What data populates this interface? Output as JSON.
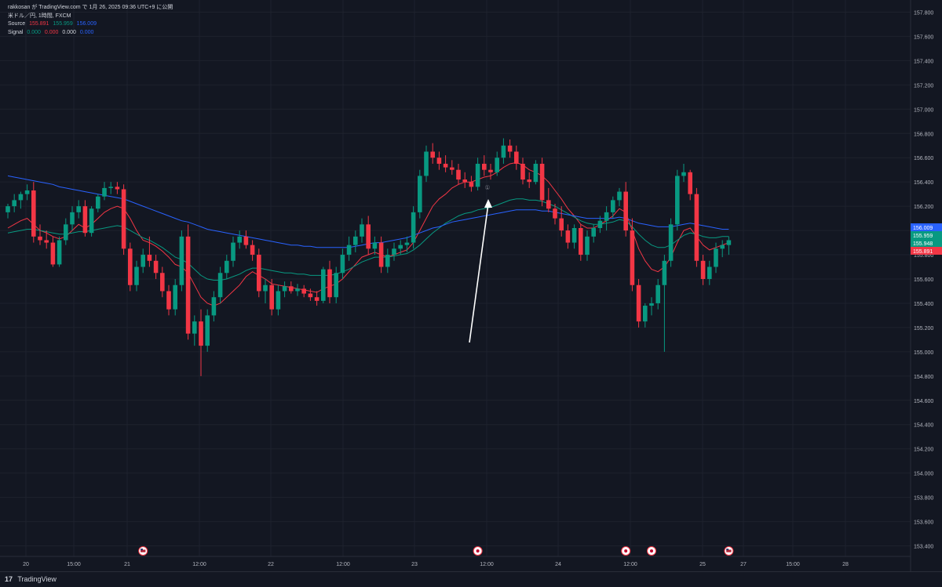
{
  "header": {
    "publish_line": "rakkosan が TradingView.com で 1月 26, 2025 09:36 UTC+9 に公開",
    "symbol_line": "米ドル／円, 1時間, FXCM",
    "source_label": "Source",
    "source_values": [
      "155.891",
      "155.959",
      "156.009"
    ],
    "signal_label": "Signal",
    "signal_values": [
      "0.000",
      "0.000",
      "0.000",
      "0.000"
    ]
  },
  "footer": {
    "brand": "TradingView",
    "logo": "17"
  },
  "colors": {
    "background": "#131722",
    "up": "#089981",
    "down": "#f23645",
    "grid": "#1e222d",
    "ma_red": "#f23645",
    "ma_green": "#089981",
    "ma_blue": "#2962ff"
  },
  "chart_data": {
    "type": "candlestick",
    "y_range": [
      153.3,
      157.9
    ],
    "y_ticks": [
      "157.800",
      "157.600",
      "157.400",
      "157.200",
      "157.000",
      "156.800",
      "156.600",
      "156.400",
      "156.200",
      "156.000",
      "155.800",
      "155.600",
      "155.400",
      "155.200",
      "155.000",
      "154.800",
      "154.600",
      "154.400",
      "154.200",
      "154.000",
      "153.800",
      "153.600",
      "153.400"
    ],
    "x_labels": [
      "20",
      "15:00",
      "21",
      "12:00",
      "22",
      "12:00",
      "23",
      "12:00",
      "24",
      "12:00",
      "25",
      "27",
      "15:00",
      "28"
    ],
    "price_badges": [
      {
        "value": "156.009",
        "color": "#2962ff"
      },
      {
        "value": "155.959",
        "color": "#089981"
      },
      {
        "value": "155.948",
        "color": "#089981"
      },
      {
        "value": "155.891",
        "color": "#f23645"
      }
    ],
    "candles": [
      [
        156.15,
        156.22,
        156.1,
        156.2
      ],
      [
        156.2,
        156.3,
        156.15,
        156.25
      ],
      [
        156.25,
        156.32,
        156.18,
        156.3
      ],
      [
        156.3,
        156.38,
        156.25,
        156.33
      ],
      [
        156.33,
        156.4,
        155.9,
        155.95
      ],
      [
        155.95,
        156.05,
        155.88,
        155.92
      ],
      [
        155.92,
        156.0,
        155.85,
        155.9
      ],
      [
        155.9,
        155.95,
        155.7,
        155.72
      ],
      [
        155.72,
        155.95,
        155.7,
        155.92
      ],
      [
        155.92,
        156.1,
        155.88,
        156.05
      ],
      [
        156.05,
        156.2,
        156.0,
        156.15
      ],
      [
        156.15,
        156.25,
        156.1,
        156.2
      ],
      [
        156.2,
        156.25,
        155.95,
        155.98
      ],
      [
        155.98,
        156.2,
        155.95,
        156.18
      ],
      [
        156.18,
        156.3,
        156.15,
        156.28
      ],
      [
        156.28,
        156.4,
        156.25,
        156.35
      ],
      [
        156.35,
        156.4,
        156.3,
        156.36
      ],
      [
        156.36,
        156.4,
        156.3,
        156.34
      ],
      [
        156.34,
        156.38,
        155.8,
        155.85
      ],
      [
        155.85,
        155.9,
        155.5,
        155.55
      ],
      [
        155.55,
        155.75,
        155.5,
        155.7
      ],
      [
        155.7,
        155.85,
        155.65,
        155.8
      ],
      [
        155.8,
        155.95,
        155.7,
        155.75
      ],
      [
        155.75,
        155.8,
        155.6,
        155.65
      ],
      [
        155.65,
        155.7,
        155.45,
        155.5
      ],
      [
        155.5,
        155.55,
        155.3,
        155.35
      ],
      [
        155.35,
        155.6,
        155.3,
        155.55
      ],
      [
        155.55,
        156.0,
        155.5,
        155.95
      ],
      [
        155.95,
        156.05,
        155.1,
        155.15
      ],
      [
        155.15,
        155.3,
        155.05,
        155.25
      ],
      [
        155.25,
        155.35,
        154.8,
        155.05
      ],
      [
        155.05,
        155.35,
        155.0,
        155.3
      ],
      [
        155.3,
        155.5,
        155.25,
        155.45
      ],
      [
        155.45,
        155.7,
        155.4,
        155.65
      ],
      [
        155.65,
        155.8,
        155.6,
        155.75
      ],
      [
        155.75,
        155.95,
        155.7,
        155.9
      ],
      [
        155.9,
        156.0,
        155.85,
        155.95
      ],
      [
        155.95,
        156.0,
        155.85,
        155.88
      ],
      [
        155.88,
        155.92,
        155.75,
        155.8
      ],
      [
        155.8,
        155.85,
        155.45,
        155.5
      ],
      [
        155.5,
        155.6,
        155.4,
        155.55
      ],
      [
        155.55,
        155.6,
        155.3,
        155.35
      ],
      [
        155.35,
        155.55,
        155.3,
        155.5
      ],
      [
        155.5,
        155.58,
        155.45,
        155.54
      ],
      [
        155.54,
        155.58,
        155.48,
        155.5
      ],
      [
        155.5,
        155.56,
        155.46,
        155.52
      ],
      [
        155.52,
        155.55,
        155.45,
        155.48
      ],
      [
        155.48,
        155.52,
        155.42,
        155.45
      ],
      [
        155.45,
        155.5,
        155.38,
        155.42
      ],
      [
        155.42,
        155.7,
        155.4,
        155.68
      ],
      [
        155.68,
        155.75,
        155.4,
        155.45
      ],
      [
        155.45,
        155.7,
        155.4,
        155.65
      ],
      [
        155.65,
        155.85,
        155.6,
        155.8
      ],
      [
        155.8,
        155.95,
        155.75,
        155.88
      ],
      [
        155.88,
        156.0,
        155.82,
        155.95
      ],
      [
        155.95,
        156.1,
        155.9,
        156.05
      ],
      [
        156.05,
        156.12,
        155.8,
        155.85
      ],
      [
        155.85,
        155.95,
        155.8,
        155.9
      ],
      [
        155.9,
        155.95,
        155.65,
        155.7
      ],
      [
        155.7,
        155.85,
        155.65,
        155.8
      ],
      [
        155.8,
        155.9,
        155.75,
        155.85
      ],
      [
        155.85,
        155.92,
        155.8,
        155.88
      ],
      [
        155.88,
        155.95,
        155.82,
        155.9
      ],
      [
        155.9,
        156.2,
        155.85,
        156.15
      ],
      [
        156.15,
        156.5,
        156.1,
        156.45
      ],
      [
        156.45,
        156.7,
        156.4,
        156.65
      ],
      [
        156.65,
        156.72,
        156.55,
        156.6
      ],
      [
        156.6,
        156.65,
        156.5,
        156.55
      ],
      [
        156.55,
        156.62,
        156.48,
        156.52
      ],
      [
        156.52,
        156.58,
        156.46,
        156.5
      ],
      [
        156.5,
        156.55,
        156.38,
        156.42
      ],
      [
        156.42,
        156.48,
        156.35,
        156.4
      ],
      [
        156.4,
        156.45,
        156.32,
        156.36
      ],
      [
        156.36,
        156.6,
        156.33,
        156.55
      ],
      [
        156.55,
        156.62,
        156.45,
        156.5
      ],
      [
        156.5,
        156.55,
        156.42,
        156.48
      ],
      [
        156.48,
        156.65,
        156.45,
        156.6
      ],
      [
        156.6,
        156.76,
        156.55,
        156.7
      ],
      [
        156.7,
        156.75,
        156.6,
        156.65
      ],
      [
        156.65,
        156.7,
        156.5,
        156.55
      ],
      [
        156.55,
        156.6,
        156.38,
        156.42
      ],
      [
        156.42,
        156.48,
        156.35,
        156.4
      ],
      [
        156.4,
        156.58,
        156.38,
        156.55
      ],
      [
        156.55,
        156.6,
        156.2,
        156.25
      ],
      [
        156.25,
        156.35,
        156.15,
        156.18
      ],
      [
        156.18,
        156.22,
        156.05,
        156.1
      ],
      [
        156.1,
        156.2,
        155.95,
        156.0
      ],
      [
        156.0,
        156.05,
        155.85,
        155.9
      ],
      [
        155.9,
        156.05,
        155.85,
        156.02
      ],
      [
        156.02,
        156.05,
        155.75,
        155.8
      ],
      [
        155.8,
        156.0,
        155.75,
        155.95
      ],
      [
        155.95,
        156.05,
        155.9,
        156.02
      ],
      [
        156.02,
        156.12,
        155.98,
        156.08
      ],
      [
        156.08,
        156.2,
        156.0,
        156.15
      ],
      [
        156.15,
        156.28,
        156.1,
        156.25
      ],
      [
        156.25,
        156.35,
        156.2,
        156.32
      ],
      [
        156.32,
        156.4,
        155.95,
        156.0
      ],
      [
        156.0,
        156.1,
        155.5,
        155.55
      ],
      [
        155.55,
        155.6,
        155.2,
        155.25
      ],
      [
        155.25,
        155.4,
        155.2,
        155.38
      ],
      [
        155.38,
        155.45,
        155.3,
        155.4
      ],
      [
        155.4,
        155.6,
        155.35,
        155.55
      ],
      [
        155.55,
        155.8,
        155.0,
        155.75
      ],
      [
        155.75,
        156.1,
        155.7,
        156.05
      ],
      [
        156.05,
        156.5,
        156.0,
        156.45
      ],
      [
        156.45,
        156.55,
        156.4,
        156.48
      ],
      [
        156.48,
        156.5,
        156.25,
        156.3
      ],
      [
        156.3,
        156.35,
        155.7,
        155.75
      ],
      [
        155.75,
        155.8,
        155.55,
        155.6
      ],
      [
        155.6,
        155.75,
        155.55,
        155.7
      ],
      [
        155.7,
        155.9,
        155.65,
        155.85
      ],
      [
        155.85,
        155.92,
        155.78,
        155.88
      ],
      [
        155.88,
        155.95,
        155.8,
        155.92
      ]
    ],
    "series": [
      {
        "color": "#f23645",
        "values": [
          156.02,
          156.05,
          156.08,
          156.1,
          156.05,
          156.0,
          155.98,
          155.95,
          155.93,
          155.95,
          156.0,
          156.05,
          156.02,
          156.05,
          156.1,
          156.15,
          156.18,
          156.2,
          156.18,
          156.1,
          156.0,
          155.92,
          155.9,
          155.87,
          155.83,
          155.78,
          155.72,
          155.7,
          155.65,
          155.55,
          155.45,
          155.4,
          155.38,
          155.4,
          155.45,
          155.5,
          155.55,
          155.62,
          155.66,
          155.63,
          155.6,
          155.56,
          155.55,
          155.54,
          155.53,
          155.52,
          155.51,
          155.5,
          155.49,
          155.52,
          155.54,
          155.56,
          155.6,
          155.66,
          155.72,
          155.78,
          155.8,
          155.82,
          155.8,
          155.78,
          155.8,
          155.82,
          155.84,
          155.9,
          156.0,
          156.1,
          156.2,
          156.26,
          156.3,
          156.35,
          156.38,
          156.4,
          156.4,
          156.42,
          156.44,
          156.45,
          156.48,
          156.52,
          156.55,
          156.56,
          156.54,
          156.5,
          156.48,
          156.45,
          156.4,
          156.33,
          156.26,
          156.18,
          156.12,
          156.05,
          156.02,
          156.02,
          156.05,
          156.08,
          156.12,
          156.18,
          156.15,
          156.0,
          155.85,
          155.75,
          155.68,
          155.66,
          155.7,
          155.78,
          155.9,
          156.0,
          156.02,
          155.95,
          155.88,
          155.84,
          155.86,
          155.88,
          155.9
        ]
      },
      {
        "color": "#089981",
        "values": [
          155.98,
          155.99,
          156.0,
          156.01,
          156.01,
          156.0,
          155.99,
          155.98,
          155.97,
          155.97,
          155.98,
          155.99,
          155.99,
          156.0,
          156.01,
          156.02,
          156.03,
          156.04,
          156.03,
          156.0,
          155.97,
          155.94,
          155.92,
          155.89,
          155.86,
          155.82,
          155.78,
          155.76,
          155.73,
          155.68,
          155.63,
          155.6,
          155.59,
          155.59,
          155.6,
          155.62,
          155.64,
          155.67,
          155.69,
          155.69,
          155.68,
          155.67,
          155.66,
          155.65,
          155.65,
          155.64,
          155.64,
          155.63,
          155.63,
          155.63,
          155.63,
          155.64,
          155.66,
          155.68,
          155.71,
          155.74,
          155.76,
          155.78,
          155.78,
          155.78,
          155.79,
          155.8,
          155.81,
          155.84,
          155.88,
          155.93,
          155.98,
          156.02,
          156.06,
          156.09,
          156.12,
          156.14,
          156.15,
          156.17,
          156.18,
          156.19,
          156.21,
          156.23,
          156.25,
          156.26,
          156.26,
          156.25,
          156.25,
          156.24,
          156.22,
          156.2,
          156.17,
          156.14,
          156.11,
          156.08,
          156.06,
          156.05,
          156.05,
          156.06,
          156.07,
          156.09,
          156.08,
          156.03,
          155.97,
          155.92,
          155.88,
          155.86,
          155.86,
          155.88,
          155.92,
          155.96,
          155.98,
          155.97,
          155.95,
          155.94,
          155.94,
          155.95,
          155.95
        ]
      },
      {
        "color": "#2962ff",
        "values": [
          156.45,
          156.44,
          156.43,
          156.42,
          156.41,
          156.4,
          156.39,
          156.38,
          156.36,
          156.35,
          156.34,
          156.33,
          156.32,
          156.31,
          156.3,
          156.29,
          156.28,
          156.27,
          156.26,
          156.24,
          156.22,
          156.2,
          156.18,
          156.16,
          156.14,
          156.12,
          156.1,
          156.08,
          156.07,
          156.05,
          156.03,
          156.01,
          156.0,
          155.99,
          155.98,
          155.97,
          155.96,
          155.95,
          155.94,
          155.93,
          155.92,
          155.91,
          155.9,
          155.89,
          155.88,
          155.88,
          155.87,
          155.87,
          155.86,
          155.86,
          155.86,
          155.86,
          155.86,
          155.86,
          155.87,
          155.88,
          155.89,
          155.9,
          155.9,
          155.91,
          155.92,
          155.93,
          155.94,
          155.96,
          155.98,
          156.0,
          156.02,
          156.03,
          156.05,
          156.07,
          156.08,
          156.09,
          156.1,
          156.11,
          156.12,
          156.13,
          156.14,
          156.15,
          156.16,
          156.17,
          156.17,
          156.17,
          156.17,
          156.16,
          156.16,
          156.15,
          156.14,
          156.13,
          156.12,
          156.11,
          156.1,
          156.1,
          156.1,
          156.1,
          156.1,
          156.11,
          156.1,
          156.08,
          156.06,
          156.05,
          156.04,
          156.03,
          156.03,
          156.03,
          156.04,
          156.05,
          156.06,
          156.05,
          156.04,
          156.03,
          156.02,
          156.01,
          156.01
        ]
      }
    ],
    "annotation_label": "①",
    "event_markers": [
      {
        "index": 21,
        "kind": "US"
      },
      {
        "index": 73,
        "kind": "JP"
      },
      {
        "index": 96,
        "kind": "JP"
      },
      {
        "index": 100,
        "kind": "JP"
      },
      {
        "index": 112,
        "kind": "US"
      }
    ]
  }
}
